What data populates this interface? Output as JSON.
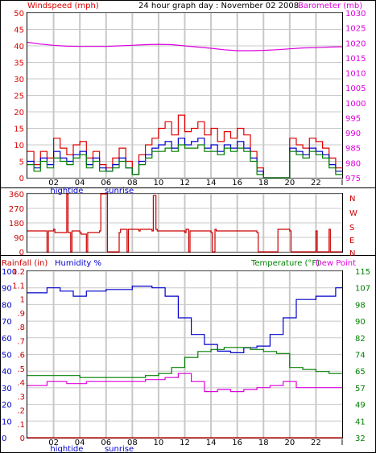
{
  "colors": {
    "background": "#ffffff",
    "frame": "#000000",
    "grid": "#c8c8c8",
    "wind": "#e00000",
    "gust": "#e00000",
    "avg": "#0000cc",
    "green": "#008000",
    "magenta": "#dd00dd",
    "blue": "#0000cc",
    "red": "#cc0000"
  },
  "header": {
    "left": "Windspeed (mph)",
    "center": "24 hour graph day : November 02 2008",
    "right": "Barometer (mb)"
  },
  "x_ticks": [
    "02",
    "04",
    "06",
    "08",
    "10",
    "12",
    "14",
    "16",
    "18",
    "20",
    "22",
    "I"
  ],
  "tide_labels": [
    {
      "hour": 3,
      "text": "hightide"
    },
    {
      "hour": 7,
      "text": "sunrise"
    }
  ],
  "chart_data": [
    {
      "type": "line",
      "title": "24 hour graph day : November 02 2008",
      "xlabel": "",
      "ylabel": "Windspeed (mph)",
      "y2label": "Barometer (mb)",
      "xlim": [
        0,
        24
      ],
      "ylim": [
        0,
        50
      ],
      "y2lim": [
        975,
        1030
      ],
      "yticks": [
        "0",
        "5",
        "10",
        "15",
        "20",
        "25",
        "30",
        "35",
        "40",
        "45",
        "50"
      ],
      "y2ticks": [
        "975",
        "980",
        "985",
        "990",
        "995",
        "1000",
        "1005",
        "1010",
        "1015",
        "1020",
        "1025",
        "1030"
      ],
      "series": [
        {
          "name": "Barometer (mb)",
          "axis": "right",
          "color": "#dd00dd",
          "x": [
            0,
            1,
            2,
            3,
            4,
            5,
            6,
            7,
            8,
            9,
            10,
            11,
            12,
            13,
            14,
            15,
            16,
            17,
            18,
            19,
            20,
            21,
            22,
            23,
            24
          ],
          "y": [
            1020.2,
            1019.6,
            1019.2,
            1018.9,
            1018.8,
            1018.8,
            1018.8,
            1019.0,
            1019.2,
            1019.4,
            1019.5,
            1019.4,
            1019.0,
            1018.6,
            1018.2,
            1017.7,
            1017.4,
            1017.4,
            1017.5,
            1017.7,
            1018.0,
            1018.3,
            1018.4,
            1018.6,
            1018.7
          ]
        },
        {
          "name": "gust",
          "axis": "left",
          "color": "#e00000",
          "step": true,
          "x": [
            0,
            0.5,
            1,
            1.5,
            2,
            2.5,
            3,
            3.5,
            4,
            4.5,
            5,
            5.5,
            6,
            6.5,
            7,
            7.5,
            8,
            8.5,
            9,
            9.5,
            10,
            10.5,
            11,
            11.5,
            12,
            12.5,
            13,
            13.5,
            14,
            14.5,
            15,
            15.5,
            16,
            16.5,
            17,
            17.5,
            18,
            18.5,
            19,
            19.5,
            20,
            20.5,
            21,
            21.5,
            22,
            22.5,
            23,
            23.5
          ],
          "y": [
            8,
            4,
            8,
            6,
            12,
            9,
            7,
            10,
            11,
            6,
            8,
            4,
            3,
            6,
            9,
            5,
            1,
            7,
            10,
            12,
            15,
            17,
            13,
            19,
            14,
            15,
            17,
            13,
            15,
            11,
            14,
            12,
            15,
            13,
            8,
            3,
            0,
            0,
            0,
            0,
            12,
            10,
            9,
            12,
            11,
            9,
            6,
            3
          ]
        },
        {
          "name": "average",
          "axis": "left",
          "color": "#0000cc",
          "step": true,
          "x": [
            0,
            0.5,
            1,
            1.5,
            2,
            2.5,
            3,
            3.5,
            4,
            4.5,
            5,
            5.5,
            6,
            6.5,
            7,
            7.5,
            8,
            8.5,
            9,
            9.5,
            10,
            10.5,
            11,
            11.5,
            12,
            12.5,
            13,
            13.5,
            14,
            14.5,
            15,
            15.5,
            16,
            16.5,
            17,
            17.5,
            18,
            18.5,
            19,
            19.5,
            20,
            20.5,
            21,
            21.5,
            22,
            22.5,
            23,
            23.5
          ],
          "y": [
            5,
            3,
            6,
            4,
            8,
            6,
            5,
            7,
            8,
            4,
            6,
            3,
            2,
            4,
            6,
            3,
            1,
            5,
            7,
            9,
            10,
            11,
            9,
            12,
            10,
            11,
            12,
            9,
            10,
            8,
            10,
            9,
            11,
            9,
            6,
            2,
            0,
            0,
            0,
            0,
            9,
            8,
            7,
            9,
            8,
            7,
            4,
            2
          ]
        },
        {
          "name": "speed",
          "axis": "left",
          "color": "#008000",
          "step": true,
          "x": [
            0,
            0.5,
            1,
            1.5,
            2,
            2.5,
            3,
            3.5,
            4,
            4.5,
            5,
            5.5,
            6,
            6.5,
            7,
            7.5,
            8,
            8.5,
            9,
            9.5,
            10,
            10.5,
            11,
            11.5,
            12,
            12.5,
            13,
            13.5,
            14,
            14.5,
            15,
            15.5,
            16,
            16.5,
            17,
            17.5,
            18,
            18.5,
            19,
            19.5,
            20,
            20.5,
            21,
            21.5,
            22,
            22.5,
            23,
            23.5
          ],
          "y": [
            4,
            2,
            5,
            3,
            6,
            5,
            4,
            6,
            7,
            3,
            5,
            2,
            2,
            3,
            5,
            3,
            1,
            4,
            6,
            8,
            8,
            9,
            8,
            10,
            9,
            9,
            10,
            8,
            8,
            7,
            9,
            8,
            9,
            8,
            5,
            1,
            0,
            0,
            0,
            0,
            8,
            7,
            6,
            8,
            7,
            6,
            3,
            1
          ]
        }
      ]
    },
    {
      "type": "line",
      "title": "",
      "ylabel": "",
      "xlim": [
        0,
        24
      ],
      "ylim": [
        0,
        360
      ],
      "yticks": [
        "0",
        "90",
        "180",
        "270",
        "360"
      ],
      "right_labels": [
        "N",
        "W",
        "S",
        "E",
        "N"
      ],
      "series": [
        {
          "name": "Wind direction",
          "color": "#cc0000",
          "step": true,
          "x": [
            0,
            1.5,
            1.6,
            2.0,
            2.1,
            3.0,
            3.1,
            3.3,
            3.4,
            4.0,
            4.1,
            4.5,
            4.6,
            5.5,
            5.6,
            6.0,
            6.1,
            7.0,
            7.1,
            7.6,
            7.7,
            8.5,
            8.6,
            9.5,
            9.6,
            9.8,
            9.9,
            12.0,
            12.1,
            12.3,
            12.4,
            14.0,
            14.1,
            14.3,
            14.4,
            17.5,
            17.6,
            19.0,
            19.1,
            20.0,
            20.1,
            22.0,
            22.1,
            23.0,
            23.1,
            24
          ],
          "y": [
            130,
            0,
            130,
            140,
            120,
            360,
            120,
            0,
            130,
            120,
            110,
            0,
            120,
            130,
            360,
            360,
            0,
            120,
            140,
            0,
            140,
            130,
            140,
            130,
            350,
            140,
            130,
            120,
            140,
            0,
            130,
            120,
            0,
            140,
            130,
            120,
            0,
            0,
            140,
            130,
            0,
            130,
            0,
            140,
            0,
            0
          ]
        }
      ]
    },
    {
      "type": "line",
      "title": "",
      "xlim": [
        0,
        24
      ],
      "labels": {
        "rain": "Rainfall (in)",
        "humidity": "Humidity %",
        "temp": "Temperature (°F)",
        "dew": "Dew Point"
      },
      "rain_ticks": [
        "0",
        ".1",
        ".2",
        ".3",
        ".4",
        ".5",
        ".6",
        ".7",
        ".8",
        ".9",
        "1",
        "1.1",
        "1.2"
      ],
      "humidity_ticks": [
        "0",
        "10",
        "20",
        "30",
        "40",
        "50",
        "60",
        "70",
        "80",
        "90",
        "100"
      ],
      "temp_ticks": [
        "32",
        "41",
        "49",
        "57",
        "65",
        "74",
        "82",
        "90",
        "98",
        "107",
        "115"
      ],
      "series": [
        {
          "name": "Humidity %",
          "axis": "humidity",
          "color": "#0000cc",
          "step": true,
          "x": [
            0,
            1.5,
            2.5,
            3.5,
            4.5,
            6.0,
            8.0,
            9.5,
            10.5,
            11.5,
            12.5,
            13.5,
            14.5,
            15.5,
            16.5,
            17.5,
            18.5,
            19.5,
            20.5,
            22.0,
            23.5
          ],
          "y": [
            87,
            90,
            88,
            85,
            88,
            89,
            91,
            90,
            85,
            72,
            62,
            56,
            52,
            51,
            54,
            55,
            62,
            72,
            83,
            85,
            90
          ]
        },
        {
          "name": "Temperature (°F)",
          "axis": "temp",
          "color": "#008000",
          "step": true,
          "x": [
            0,
            2,
            4,
            6,
            8,
            9,
            10,
            11,
            12,
            13,
            14,
            15,
            16,
            17,
            18,
            19,
            20,
            21,
            22,
            23,
            24
          ],
          "y": [
            63,
            63,
            62,
            62,
            62,
            63,
            64,
            67,
            72,
            75,
            76,
            77,
            77,
            76,
            75,
            74,
            67,
            66,
            65,
            64,
            64
          ]
        },
        {
          "name": "Dew Point",
          "axis": "temp",
          "color": "#dd00dd",
          "step": true,
          "x": [
            0,
            1.5,
            3,
            4.5,
            6,
            7.5,
            9,
            10.5,
            11.5,
            12.5,
            13.5,
            14.5,
            15.5,
            16.5,
            17.5,
            18.5,
            19.5,
            20.5,
            22,
            23.5
          ],
          "y": [
            58,
            60,
            59,
            60,
            60,
            60,
            61,
            62,
            64,
            60,
            55,
            56,
            55,
            56,
            57,
            58,
            60,
            57,
            57,
            57
          ]
        },
        {
          "name": "Rainfall (in)",
          "axis": "rain",
          "color": "#cc0000",
          "step": false,
          "x": [
            0,
            24
          ],
          "y": [
            0,
            0
          ]
        }
      ]
    }
  ]
}
